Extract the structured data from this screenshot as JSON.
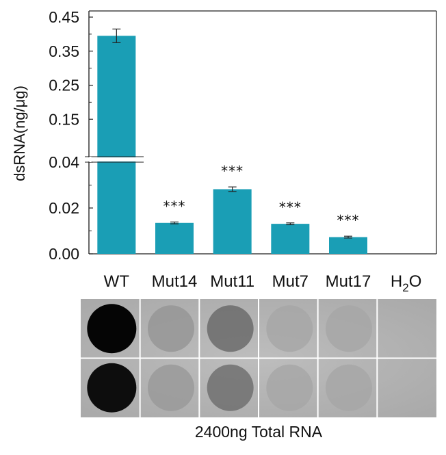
{
  "chart_data": {
    "type": "bar",
    "ylabel": "dsRNA(ng/μg)",
    "categories": [
      "WT",
      "Mut14",
      "Mut11",
      "Mut7",
      "Mut17",
      "H2O"
    ],
    "values": [
      0.395,
      0.0135,
      0.0282,
      0.0131,
      0.0073,
      0
    ],
    "errors": [
      0.02,
      0.0004,
      0.001,
      0.0004,
      0.0004,
      0
    ],
    "significance": [
      "",
      "***",
      "***",
      "***",
      "***",
      ""
    ],
    "bar_color": "#1a9eb5",
    "y_axis_broken": true,
    "ylim_lower": [
      0,
      0.04
    ],
    "ylim_upper": [
      0.04,
      0.45
    ],
    "yticks_lower": [
      "0.00",
      "0.02",
      "0.04"
    ],
    "yticks_upper": [
      "0.15",
      "0.25",
      "0.35",
      "0.45"
    ],
    "ytick_values_lower": [
      0,
      0.02,
      0.04
    ],
    "ytick_values_upper": [
      0.15,
      0.25,
      0.35,
      0.45
    ],
    "grid": false
  },
  "blot": {
    "caption": "2400ng Total RNA",
    "rows": 2,
    "columns": [
      "WT",
      "Mut14",
      "Mut11",
      "Mut7",
      "Mut17",
      "H2O"
    ],
    "dot_intensity": [
      [
        1.0,
        0.12,
        0.38,
        0.02,
        0.02,
        0.0
      ],
      [
        0.95,
        0.1,
        0.35,
        0.02,
        0.02,
        0.0
      ]
    ]
  }
}
